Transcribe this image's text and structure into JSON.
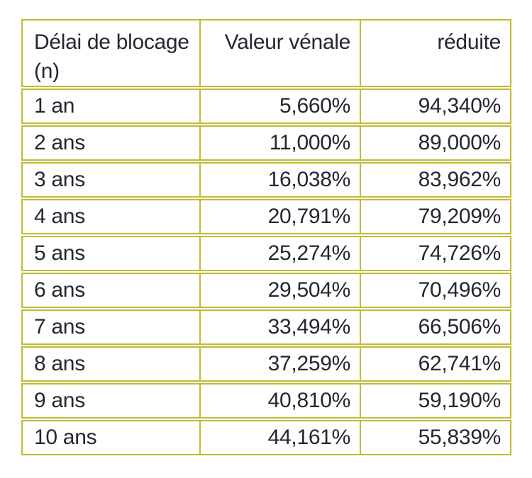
{
  "colors": {
    "border": "#c1bb34",
    "text": "#242632",
    "background": "#ffffff"
  },
  "table": {
    "headers": {
      "delai": "Délai de blocage (n)",
      "valeur_venale": "Valeur vénale",
      "reduite": "réduite"
    },
    "rows": [
      {
        "delai": "1 an",
        "valeur_venale": "5,660%",
        "reduite": "94,340%"
      },
      {
        "delai": "2 ans",
        "valeur_venale": "11,000%",
        "reduite": "89,000%"
      },
      {
        "delai": "3 ans",
        "valeur_venale": "16,038%",
        "reduite": "83,962%"
      },
      {
        "delai": "4 ans",
        "valeur_venale": "20,791%",
        "reduite": "79,209%"
      },
      {
        "delai": "5 ans",
        "valeur_venale": "25,274%",
        "reduite": "74,726%"
      },
      {
        "delai": "6 ans",
        "valeur_venale": "29,504%",
        "reduite": "70,496%"
      },
      {
        "delai": "7 ans",
        "valeur_venale": "33,494%",
        "reduite": "66,506%"
      },
      {
        "delai": "8 ans",
        "valeur_venale": "37,259%",
        "reduite": "62,741%"
      },
      {
        "delai": "9 ans",
        "valeur_venale": "40,810%",
        "reduite": "59,190%"
      },
      {
        "delai": "10 ans",
        "valeur_venale": "44,161%",
        "reduite": "55,839%"
      }
    ]
  }
}
